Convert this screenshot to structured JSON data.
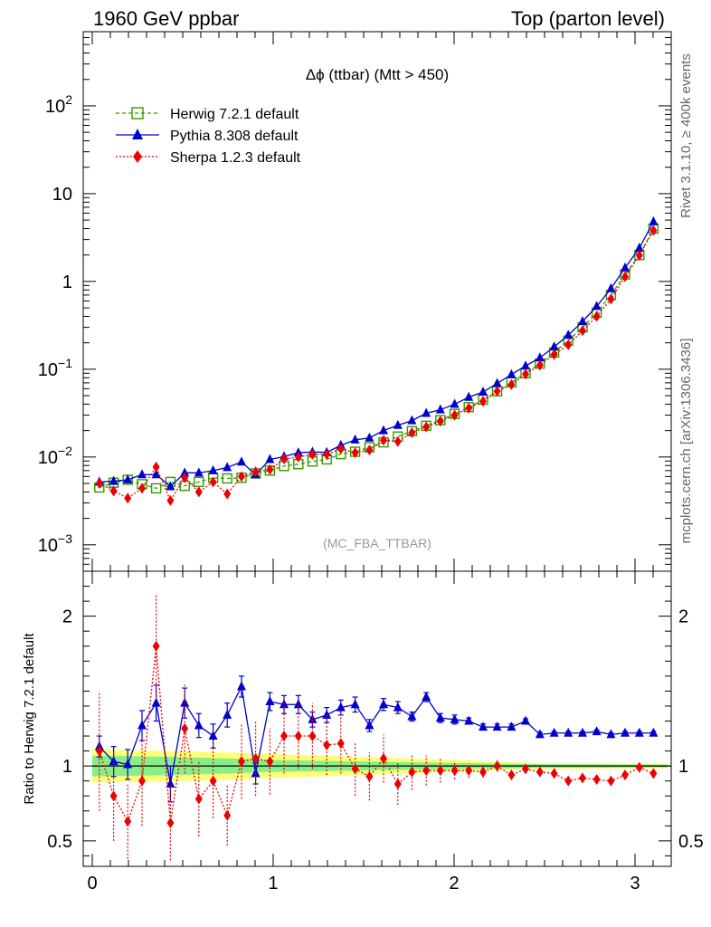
{
  "header": {
    "left": "1960 GeV ppbar",
    "right": "Top (parton level)"
  },
  "side_labels": {
    "rivet": "Rivet 3.1.10, ≥ 400k events",
    "mcplots": "mcplots.cern.ch [arXiv:1306.3436]"
  },
  "chart_data": [
    {
      "type": "line",
      "panel": "main",
      "title": "Δϕ (ttbar) (Mtt > 450)",
      "watermark": "(MC_FBA_TTBAR)",
      "y_scale": "log",
      "ylim": [
        0.0005,
        700
      ],
      "xlim": [
        -0.05,
        3.2
      ],
      "y_ticks": [
        {
          "value": 0.001,
          "base": "10",
          "exp": "−3"
        },
        {
          "value": 0.01,
          "base": "10",
          "exp": "−2"
        },
        {
          "value": 0.1,
          "base": "10",
          "exp": "−1"
        },
        {
          "value": 1,
          "base": "1",
          "exp": ""
        },
        {
          "value": 10,
          "base": "10",
          "exp": ""
        },
        {
          "value": 100,
          "base": "10",
          "exp": "2"
        }
      ],
      "legend_position": "top-left",
      "x": [
        0.039,
        0.118,
        0.196,
        0.275,
        0.353,
        0.432,
        0.511,
        0.589,
        0.668,
        0.746,
        0.825,
        0.903,
        0.982,
        1.06,
        1.139,
        1.217,
        1.296,
        1.374,
        1.453,
        1.532,
        1.61,
        1.689,
        1.767,
        1.846,
        1.924,
        2.003,
        2.081,
        2.16,
        2.238,
        2.317,
        2.395,
        2.474,
        2.553,
        2.631,
        2.71,
        2.788,
        2.867,
        2.945,
        3.024,
        3.102
      ],
      "series": [
        {
          "name": "Herwig 7.2.1 default",
          "color": "#339900",
          "marker": "open-square",
          "dash": "4,3",
          "values": [
            0.0045,
            0.0051,
            0.0055,
            0.0049,
            0.0044,
            0.0052,
            0.0047,
            0.0052,
            0.0058,
            0.0057,
            0.0058,
            0.0065,
            0.007,
            0.0079,
            0.0083,
            0.0089,
            0.0094,
            0.0108,
            0.0115,
            0.0129,
            0.0147,
            0.0171,
            0.0197,
            0.0227,
            0.0263,
            0.031,
            0.037,
            0.045,
            0.056,
            0.071,
            0.09,
            0.116,
            0.155,
            0.212,
            0.3,
            0.44,
            0.7,
            1.2,
            2.0,
            4.0
          ]
        },
        {
          "name": "Pythia 8.308 default",
          "color": "#0000cc",
          "marker": "filled-triangle",
          "dash": "",
          "values": [
            0.0052,
            0.0053,
            0.0055,
            0.0063,
            0.0063,
            0.0046,
            0.0066,
            0.0066,
            0.007,
            0.0076,
            0.0088,
            0.0063,
            0.0094,
            0.0101,
            0.0112,
            0.0114,
            0.0113,
            0.0136,
            0.0157,
            0.0165,
            0.02,
            0.023,
            0.026,
            0.0315,
            0.0345,
            0.04,
            0.048,
            0.055,
            0.069,
            0.087,
            0.109,
            0.135,
            0.18,
            0.244,
            0.35,
            0.52,
            0.83,
            1.43,
            2.4,
            4.8
          ]
        },
        {
          "name": "Sherpa 1.2.3 default",
          "color": "#ee0000",
          "marker": "filled-diamond",
          "dash": "2,2",
          "values": [
            0.005,
            0.0041,
            0.0034,
            0.0044,
            0.0077,
            0.0032,
            0.0058,
            0.004,
            0.0052,
            0.0038,
            0.006,
            0.0068,
            0.0072,
            0.0095,
            0.01,
            0.0107,
            0.0107,
            0.0124,
            0.0112,
            0.012,
            0.0155,
            0.015,
            0.0189,
            0.022,
            0.0256,
            0.03,
            0.036,
            0.043,
            0.056,
            0.067,
            0.088,
            0.111,
            0.147,
            0.19,
            0.275,
            0.4,
            0.63,
            1.13,
            1.98,
            3.8
          ]
        }
      ]
    },
    {
      "type": "line",
      "panel": "ratio",
      "ylabel": "Ratio to Herwig 7.2.1 default",
      "ylim": [
        0.33,
        2.3
      ],
      "xlim": [
        -0.05,
        3.2
      ],
      "y_ticks": [
        0.5,
        1,
        2
      ],
      "y_tick_labels": [
        "0.5",
        "1",
        "2"
      ],
      "x_ticks": [
        0,
        1,
        2,
        3
      ],
      "x_tick_labels": [
        "0",
        "1",
        "2",
        "3"
      ],
      "band_1sigma": {
        "color": "#88ee88",
        "x": [
          0.0,
          0.5,
          1.0,
          1.5,
          2.0,
          2.5,
          3.18
        ],
        "half_width": [
          0.07,
          0.06,
          0.04,
          0.03,
          0.02,
          0.012,
          0.01
        ]
      },
      "band_2sigma": {
        "color": "#ffff77",
        "x": [
          0.0,
          0.5,
          1.0,
          1.5,
          2.0,
          2.5,
          3.18
        ],
        "half_width": [
          0.11,
          0.1,
          0.08,
          0.06,
          0.04,
          0.02,
          0.015
        ]
      },
      "series": [
        {
          "name": "Pythia 8.308 default",
          "color": "#0000cc",
          "marker": "filled-triangle",
          "dash": "",
          "values": [
            1.13,
            1.03,
            1.01,
            1.27,
            1.42,
            0.88,
            1.42,
            1.27,
            1.2,
            1.34,
            1.53,
            0.95,
            1.43,
            1.41,
            1.41,
            1.31,
            1.34,
            1.39,
            1.41,
            1.27,
            1.41,
            1.39,
            1.33,
            1.46,
            1.32,
            1.31,
            1.3,
            1.26,
            1.26,
            1.26,
            1.3,
            1.21,
            1.22,
            1.22,
            1.22,
            1.23,
            1.21,
            1.22,
            1.22,
            1.22
          ],
          "errors": [
            0.07,
            0.1,
            0.1,
            0.1,
            0.12,
            0.12,
            0.1,
            0.08,
            0.08,
            0.08,
            0.07,
            0.07,
            0.06,
            0.06,
            0.06,
            0.05,
            0.05,
            0.05,
            0.05,
            0.04,
            0.04,
            0.04,
            0.03,
            0.03,
            0.03,
            0.03,
            0.02,
            0.02,
            0.02,
            0.02,
            0.015,
            0.015,
            0.01,
            0.01,
            0.01,
            0.01,
            0.01,
            0.01,
            0.01,
            0.01
          ]
        },
        {
          "name": "Sherpa 1.2.3 default",
          "color": "#ee0000",
          "marker": "filled-diamond",
          "dash": "2,2",
          "values": [
            1.1,
            0.8,
            0.63,
            0.9,
            1.8,
            0.62,
            1.25,
            0.78,
            0.9,
            0.67,
            1.03,
            1.05,
            1.03,
            1.2,
            1.2,
            1.2,
            1.14,
            1.15,
            0.98,
            0.93,
            1.05,
            0.88,
            0.96,
            0.97,
            0.97,
            0.97,
            0.97,
            0.96,
            1.0,
            0.94,
            0.98,
            0.96,
            0.95,
            0.9,
            0.92,
            0.91,
            0.9,
            0.94,
            0.99,
            0.95
          ],
          "errors": [
            0.4,
            0.3,
            0.25,
            0.3,
            0.35,
            0.25,
            0.3,
            0.25,
            0.25,
            0.2,
            0.25,
            0.25,
            0.22,
            0.25,
            0.22,
            0.22,
            0.2,
            0.2,
            0.18,
            0.16,
            0.16,
            0.14,
            0.12,
            0.1,
            0.08,
            0.06,
            0.05,
            0.04,
            0.04,
            0.03,
            0.03,
            0.025,
            0.02,
            0.02,
            0.015,
            0.015,
            0.012,
            0.01,
            0.01,
            0.01
          ]
        }
      ]
    }
  ]
}
